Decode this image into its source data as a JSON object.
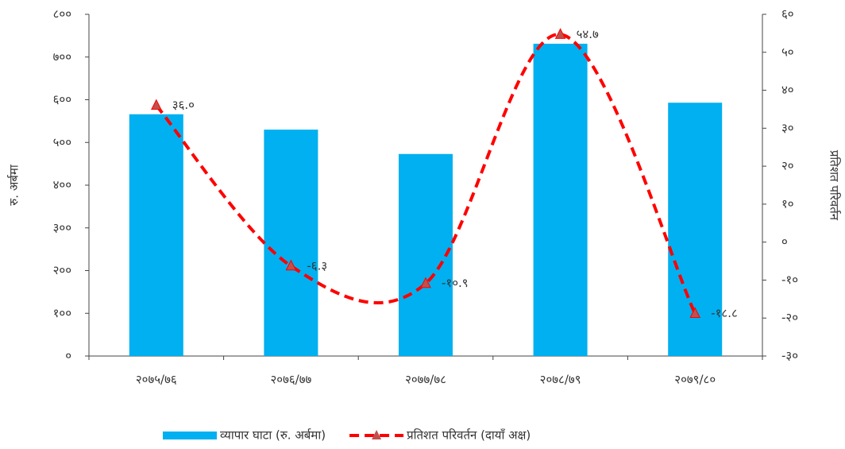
{
  "chart_data": {
    "type": "bar-line",
    "categories": [
      "२०७५/७६",
      "२०७६/७७",
      "२०७७/७८",
      "२०७८/७९",
      "२०७९/८०"
    ],
    "y_label": "रु. अर्बमा",
    "y2_label": "प्रतिशत परिवर्तन",
    "series": [
      {
        "name": "व्यापार घाटा (रु. अर्बमा)",
        "type": "bar",
        "color": "#00b0f0",
        "values": [
          566,
          530,
          473,
          731,
          593
        ]
      },
      {
        "name": "प्रतिशत परिवर्तन (दायाँ अक्ष)",
        "type": "line",
        "axis": "y2",
        "color": "#ff0000",
        "marker_color": "#c0504d",
        "values": [
          36.0,
          -6.3,
          -10.9,
          54.7,
          -18.8
        ],
        "value_labels": [
          "३६.०",
          "-६.३",
          "-१०.९",
          "५४.७",
          "-१८.८"
        ]
      }
    ],
    "ylim": [
      0,
      800
    ],
    "yticks": [
      {
        "value": 0,
        "label": "०"
      },
      {
        "value": 100,
        "label": "१००"
      },
      {
        "value": 200,
        "label": "२००"
      },
      {
        "value": 300,
        "label": "३००"
      },
      {
        "value": 400,
        "label": "४००"
      },
      {
        "value": 500,
        "label": "५००"
      },
      {
        "value": 600,
        "label": "६००"
      },
      {
        "value": 700,
        "label": "७००"
      },
      {
        "value": 800,
        "label": "८००"
      }
    ],
    "y2lim": [
      -30,
      60
    ],
    "y2ticks": [
      {
        "value": -30,
        "label": "-३०"
      },
      {
        "value": -20,
        "label": "-२०"
      },
      {
        "value": -10,
        "label": "-१०"
      },
      {
        "value": 0,
        "label": "०"
      },
      {
        "value": 10,
        "label": "१०"
      },
      {
        "value": 20,
        "label": "२०"
      },
      {
        "value": 30,
        "label": "३०"
      },
      {
        "value": 40,
        "label": "४०"
      },
      {
        "value": 50,
        "label": "५०"
      },
      {
        "value": 60,
        "label": "६०"
      }
    ],
    "legend": "bottom"
  }
}
